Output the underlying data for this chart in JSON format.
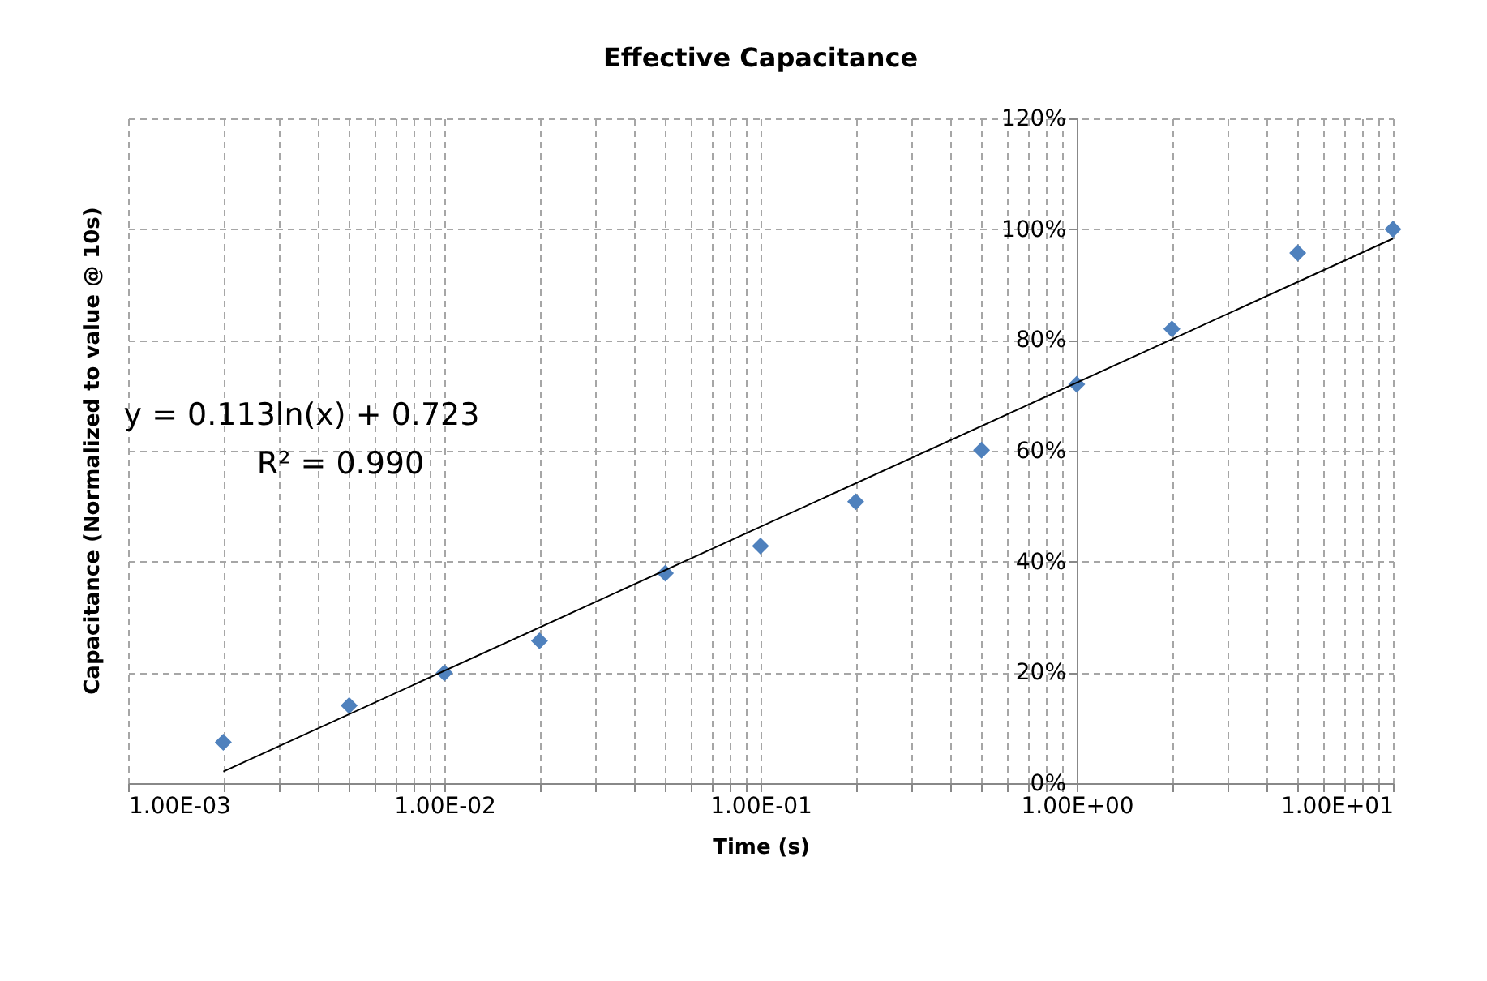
{
  "chart_data": {
    "type": "scatter",
    "title": "Effective Capacitance",
    "xlabel": "Time (s)",
    "ylabel": "Capacitance (Normalized to value @ 10s)",
    "x": [
      0.002,
      0.005,
      0.01,
      0.02,
      0.05,
      0.1,
      0.2,
      0.5,
      1,
      2,
      5,
      10
    ],
    "series": [
      {
        "color": "#4f81bd",
        "marker": "diamond",
        "values": [
          7.4,
          14.0,
          19.9,
          25.7,
          37.9,
          42.8,
          50.8,
          60.1,
          72.0,
          82.0,
          95.7,
          100
        ]
      },
      {
        "type": "line",
        "color": "#000000",
        "marker": "none",
        "line_style": "solid",
        "x": [
          0.002,
          10
        ],
        "values": [
          2.1,
          98.3
        ]
      }
    ],
    "log": "x",
    "xlim": [
      0.001,
      10
    ],
    "ylim": [
      0,
      120
    ],
    "xticks": [
      {
        "value": 0.001,
        "label": "1.00E-03"
      },
      {
        "value": 0.002,
        "label": null
      },
      {
        "value": 0.003,
        "label": null
      },
      {
        "value": 0.004,
        "label": null
      },
      {
        "value": 0.005,
        "label": null
      },
      {
        "value": 0.006,
        "label": null
      },
      {
        "value": 0.007,
        "label": null
      },
      {
        "value": 0.008,
        "label": null
      },
      {
        "value": 0.009,
        "label": null
      },
      {
        "value": 0.01,
        "label": "1.00E-02"
      },
      {
        "value": 0.02,
        "label": null
      },
      {
        "value": 0.03,
        "label": null
      },
      {
        "value": 0.04,
        "label": null
      },
      {
        "value": 0.05,
        "label": null
      },
      {
        "value": 0.06,
        "label": null
      },
      {
        "value": 0.07,
        "label": null
      },
      {
        "value": 0.08,
        "label": null
      },
      {
        "value": 0.09,
        "label": null
      },
      {
        "value": 0.1,
        "label": "1.00E-01"
      },
      {
        "value": 0.2,
        "label": null
      },
      {
        "value": 0.3,
        "label": null
      },
      {
        "value": 0.4,
        "label": null
      },
      {
        "value": 0.5,
        "label": null
      },
      {
        "value": 0.6,
        "label": null
      },
      {
        "value": 0.7,
        "label": null
      },
      {
        "value": 0.8,
        "label": null
      },
      {
        "value": 0.9,
        "label": null
      },
      {
        "value": 1,
        "label": "1.00E+00"
      },
      {
        "value": 2,
        "label": null
      },
      {
        "value": 3,
        "label": null
      },
      {
        "value": 4,
        "label": null
      },
      {
        "value": 5,
        "label": null
      },
      {
        "value": 6,
        "label": null
      },
      {
        "value": 7,
        "label": null
      },
      {
        "value": 8,
        "label": null
      },
      {
        "value": 9,
        "label": null
      },
      {
        "value": 10,
        "label": "1.00E+01"
      }
    ],
    "yticks": [
      {
        "value": 0,
        "label": "0%"
      },
      {
        "value": 20,
        "label": "20%"
      },
      {
        "value": 40,
        "label": "40%"
      },
      {
        "value": 60,
        "label": "60%"
      },
      {
        "value": 80,
        "label": "80%"
      },
      {
        "value": 100,
        "label": "100%"
      },
      {
        "value": 120,
        "label": "120%"
      }
    ],
    "grid": true,
    "annotations": [
      "y = 0.113ln(x) + 0.723",
      "R² = 0.990"
    ]
  }
}
